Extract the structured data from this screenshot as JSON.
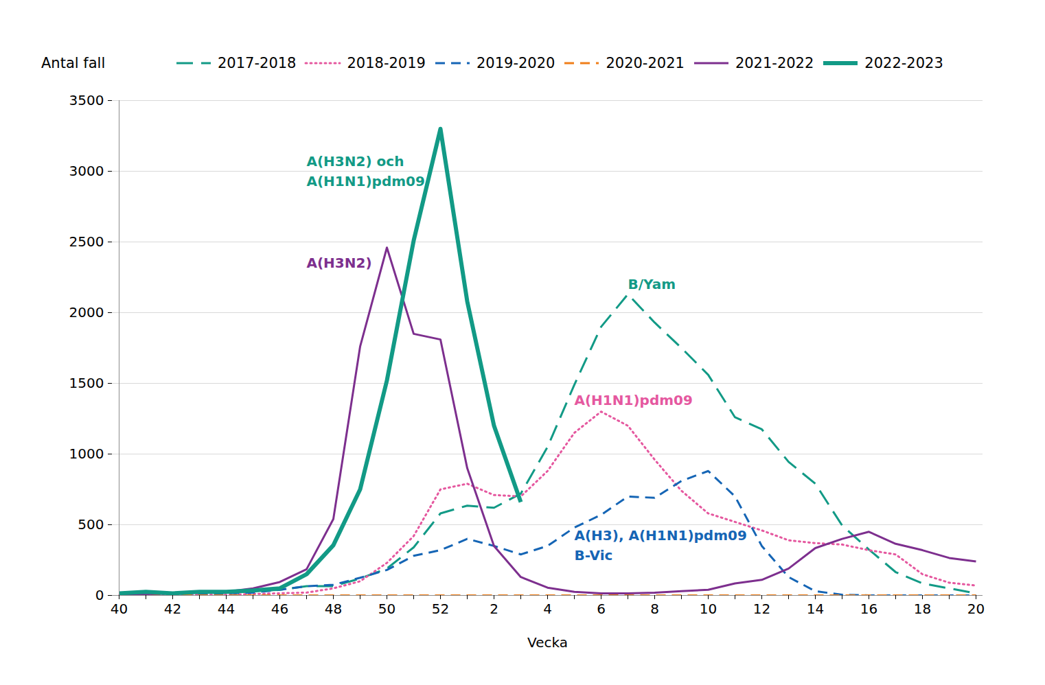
{
  "chart_data": {
    "type": "line",
    "x_label": "Vecka",
    "y_label": "Antal fall",
    "categories": [
      "40",
      null,
      "42",
      null,
      "44",
      null,
      "46",
      null,
      "48",
      null,
      "50",
      null,
      "52",
      null,
      "2",
      null,
      "4",
      null,
      "6",
      null,
      "8",
      null,
      "10",
      null,
      "12",
      null,
      "14",
      null,
      "16",
      null,
      "18",
      null,
      "20"
    ],
    "ylim": [
      0,
      3500
    ],
    "yticks": [
      0,
      500,
      1000,
      1500,
      2000,
      2500,
      3000,
      3500
    ],
    "grid": true,
    "legend": "top",
    "series": [
      {
        "name": "2017-2018",
        "color": "#129a86",
        "line_style": "longdash",
        "values": [
          15,
          20,
          15,
          20,
          20,
          30,
          40,
          65,
          65,
          120,
          190,
          340,
          580,
          635,
          620,
          720,
          1050,
          1490,
          1900,
          2130,
          1930,
          1750,
          1560,
          1260,
          1175,
          945,
          790,
          495,
          325,
          165,
          85,
          50,
          15
        ]
      },
      {
        "name": "2018-2019",
        "color": "#e5589f",
        "line_style": "dotted",
        "values": [
          0,
          0,
          0,
          5,
          5,
          10,
          15,
          20,
          50,
          100,
          230,
          420,
          750,
          790,
          710,
          700,
          880,
          1150,
          1300,
          1200,
          960,
          740,
          580,
          520,
          460,
          390,
          370,
          360,
          320,
          290,
          150,
          90,
          70
        ]
      },
      {
        "name": "2019-2020",
        "color": "#1565b5",
        "line_style": "dashed",
        "values": [
          0,
          0,
          5,
          10,
          15,
          20,
          40,
          65,
          75,
          125,
          180,
          280,
          320,
          400,
          350,
          290,
          350,
          480,
          570,
          700,
          690,
          810,
          880,
          700,
          350,
          130,
          30,
          5,
          0,
          0,
          0,
          0,
          0
        ]
      },
      {
        "name": "2020-2021",
        "color": "#f07f1a",
        "line_style": "dashed",
        "values": [
          0,
          0,
          0,
          0,
          0,
          0,
          0,
          0,
          0,
          0,
          0,
          0,
          0,
          0,
          0,
          0,
          0,
          0,
          0,
          0,
          0,
          0,
          0,
          0,
          0,
          0,
          0,
          0,
          0,
          0,
          0,
          0,
          0
        ]
      },
      {
        "name": "2021-2022",
        "color": "#7d2f8e",
        "line_style": "solid",
        "values": [
          5,
          10,
          15,
          20,
          25,
          50,
          95,
          185,
          540,
          1760,
          2460,
          1850,
          1810,
          900,
          350,
          130,
          55,
          25,
          15,
          15,
          20,
          30,
          40,
          85,
          110,
          190,
          335,
          400,
          450,
          365,
          320,
          265,
          240
        ]
      },
      {
        "name": "2022-2023",
        "color": "#129a86",
        "line_style": "thick",
        "values": [
          15,
          25,
          15,
          25,
          25,
          35,
          50,
          150,
          355,
          750,
          1520,
          2510,
          3300,
          2080,
          1200,
          660,
          null,
          null,
          null,
          null,
          null,
          null,
          null,
          null,
          null,
          null,
          null,
          null,
          null,
          null,
          null,
          null,
          null
        ]
      }
    ],
    "annotations": [
      {
        "text": "A(H3N2) och\nA(H1N1)pdm09",
        "series": "2022-2023",
        "x": 7,
        "y": 3010
      },
      {
        "text": "A(H3N2)",
        "series": "2021-2022",
        "x": 7,
        "y": 2364
      },
      {
        "text": "B/Yam",
        "series": "2017-2018",
        "x": 19,
        "y": 2214
      },
      {
        "text": "A(H1N1)pdm09",
        "series": "2018-2019",
        "x": 17,
        "y": 1393
      },
      {
        "text": "A(H3), A(H1N1)pdm09\nB-Vic",
        "series": "2019-2020",
        "x": 17,
        "y": 364
      }
    ]
  }
}
